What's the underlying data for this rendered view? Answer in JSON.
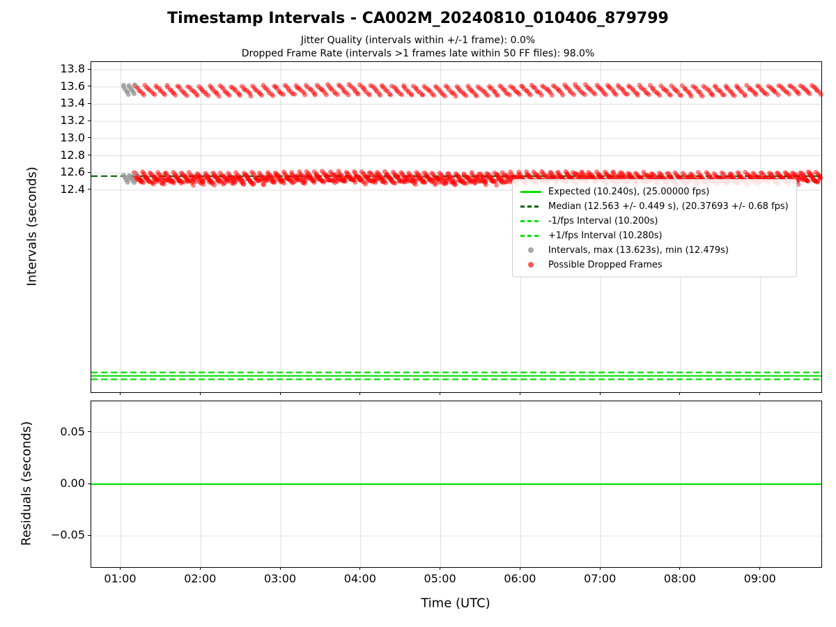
{
  "figure": {
    "title": "Timestamp Intervals - CA002M_20240810_010406_879799",
    "subtitle_line1": "Jitter Quality (intervals within +/-1 frame): 0.0%",
    "subtitle_line2": "Dropped Frame Rate (intervals >1 frames late within 50 FF files): 98.0%"
  },
  "chart_data": [
    {
      "id": "intervals",
      "type": "scatter",
      "ylabel": "Intervals (seconds)",
      "ylim": [
        10.05,
        13.89
      ],
      "yticks": [
        "13.8",
        "13.6",
        "13.4",
        "13.2",
        "13.0",
        "12.8",
        "12.6",
        "12.4"
      ],
      "ytick_values": [
        13.8,
        13.6,
        13.4,
        13.2,
        13.0,
        12.8,
        12.6,
        12.4
      ],
      "xlim_hours": [
        0.63,
        9.76
      ],
      "xticks": [
        {
          "hour": 1,
          "label": "01:00"
        },
        {
          "hour": 2,
          "label": "02:00"
        },
        {
          "hour": 3,
          "label": "03:00"
        },
        {
          "hour": 4,
          "label": "04:00"
        },
        {
          "hour": 5,
          "label": "05:00"
        },
        {
          "hour": 6,
          "label": "06:00"
        },
        {
          "hour": 7,
          "label": "07:00"
        },
        {
          "hour": 8,
          "label": "08:00"
        },
        {
          "hour": 9,
          "label": "09:00"
        }
      ],
      "grid": true,
      "hlines": [
        {
          "name": "median",
          "y": 12.563,
          "color": "#006400",
          "dash": "dashed"
        },
        {
          "name": "expected",
          "y": 10.24,
          "color": "#00e000",
          "dash": "solid"
        },
        {
          "name": "minus_1fps",
          "y": 10.2,
          "color": "#00e000",
          "dash": "dashed"
        },
        {
          "name": "plus_1fps",
          "y": 10.28,
          "color": "#00e000",
          "dash": "dashed"
        }
      ],
      "scatter": {
        "dropped_frames": {
          "color": "#ff0000",
          "opacity": 0.5,
          "radius": 3.4,
          "bands": [
            {
              "t_start": 1.17,
              "t_end": 9.76,
              "y_center": 13.56,
              "amplitude": 0.055,
              "dx_hours": 0.0192,
              "pattern_len": 7,
              "jitter": 0.008
            },
            {
              "t_start": 1.17,
              "t_end": 9.76,
              "y_center": 12.555,
              "amplitude": 0.05,
              "dx_hours": 0.014,
              "pattern_len": 7,
              "jitter": 0.01
            },
            {
              "t_start": 1.17,
              "t_end": 9.76,
              "y_center": 12.52,
              "amplitude": 0.04,
              "dx_hours": 0.014,
              "pattern_len": 9,
              "jitter": 0.02
            }
          ]
        },
        "intervals_gray": {
          "color": "#9c9c9c",
          "opacity": 0.8,
          "radius": 3.4,
          "bands": [
            {
              "t_start": 1.03,
              "t_end": 1.18,
              "y_center": 13.56,
              "amplitude": 0.05,
              "dx_hours": 0.012,
              "pattern_len": 6,
              "jitter": 0.01
            },
            {
              "t_start": 1.03,
              "t_end": 1.18,
              "y_center": 12.53,
              "amplitude": 0.04,
              "dx_hours": 0.012,
              "pattern_len": 6,
              "jitter": 0.012
            }
          ]
        }
      },
      "stats": {
        "expected_interval_s": 10.24,
        "expected_fps": 25.0,
        "median_interval_s": 12.563,
        "median_interval_err_s": 0.449,
        "median_fps": 20.37693,
        "median_fps_err": 0.68,
        "minus_1fps_interval_s": 10.2,
        "plus_1fps_interval_s": 10.28,
        "max_interval_s": 13.623,
        "min_interval_s": 12.479,
        "jitter_quality_pct": 0.0,
        "dropped_frame_rate_pct": 98.0
      }
    },
    {
      "id": "residuals",
      "type": "line",
      "ylabel": "Residuals (seconds)",
      "xlabel": "Time (UTC)",
      "ylim": [
        -0.08,
        0.08
      ],
      "yticks": [
        "0.05",
        "0.00",
        "−0.05"
      ],
      "ytick_values": [
        0.05,
        0.0,
        -0.05
      ],
      "line": {
        "y": 0.0,
        "color": "#00e000"
      }
    }
  ],
  "legend": {
    "items": [
      {
        "label": "Expected (10.240s), (25.00000 fps)",
        "swatch": "line-solid-green"
      },
      {
        "label": "Median (12.563 +/- 0.449 s), (20.37693 +/- 0.68 fps)",
        "swatch": "line-dash-darkgreen"
      },
      {
        "label": "-1/fps Interval (10.200s)",
        "swatch": "line-dash-green"
      },
      {
        "label": "+1/fps Interval (10.280s)",
        "swatch": "line-dash-green"
      },
      {
        "label": "Intervals, max (13.623s), min (12.479s)",
        "swatch": "dot-gray"
      },
      {
        "label": "Possible Dropped Frames",
        "swatch": "dot-red"
      }
    ]
  },
  "colors": {
    "expected_green": "#00e000",
    "median_darkgreen": "#006400",
    "dropped_red": "#ff0000",
    "intervals_gray": "#9c9c9c",
    "grid": "#dcdcdc"
  }
}
